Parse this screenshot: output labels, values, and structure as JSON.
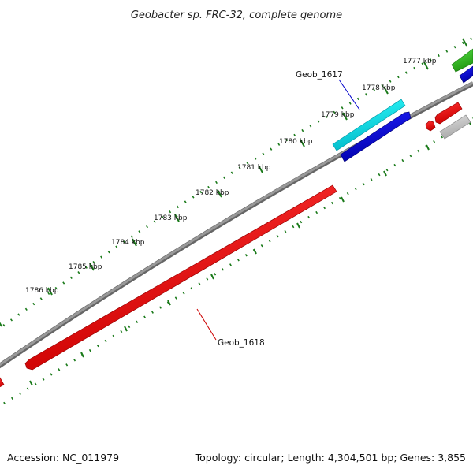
{
  "title": "Geobacter sp. FRC-32, complete genome",
  "accession_label": "Accession: NC_011979",
  "summary_label": "Topology: circular; Length: 4,304,501 bp; Genes: 3,855",
  "ticks": [
    "1777 kbp",
    "1778 kbp",
    "1779 kbp",
    "1780 kbp",
    "1781 kbp",
    "1782 kbp",
    "1783 kbp",
    "1784 kbp",
    "1785 kbp",
    "1786 kbp"
  ],
  "genes": [
    {
      "label": "Geob_1617",
      "color": "#0000cc",
      "feature_color": "#00e5e5"
    },
    {
      "label": "Geob_1618",
      "color": "#cc0000",
      "feature_color": "#ff0000"
    }
  ],
  "colors": {
    "backbone": "#808080",
    "tick_dots": "#1a7a1a",
    "cyan_feature": "#00e5e5",
    "blue_feature": "#0000dd",
    "red_feature": "#ff0000",
    "green_feature": "#33bb22",
    "grey_feature": "#c8c8c8"
  }
}
